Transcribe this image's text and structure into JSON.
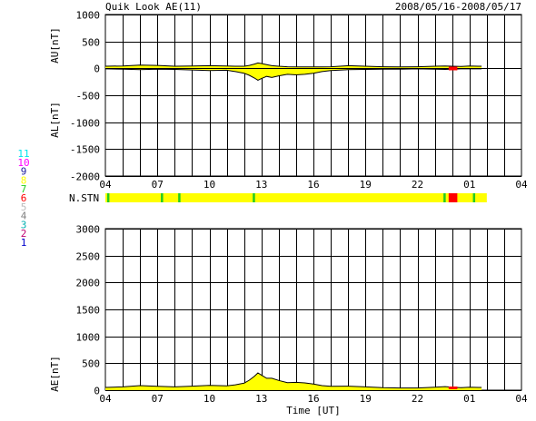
{
  "header": {
    "title": "Quik Look AE(11)",
    "date_range": "2008/05/16-2008/05/17"
  },
  "station_legend": {
    "label": "N.STN",
    "entries": [
      {
        "label": "11",
        "color": "#00e5ee"
      },
      {
        "label": "10",
        "color": "#ff00ff"
      },
      {
        "label": "9",
        "color": "#2020a0"
      },
      {
        "label": "8",
        "color": "#ffff00"
      },
      {
        "label": "7",
        "color": "#22cc22"
      },
      {
        "label": "6",
        "color": "#ff0000"
      },
      {
        "label": "5",
        "color": "#bbbbbb"
      },
      {
        "label": "4",
        "color": "#808080"
      },
      {
        "label": "3",
        "color": "#00b0b0"
      },
      {
        "label": "2",
        "color": "#c00070"
      },
      {
        "label": "1",
        "color": "#0000cc"
      }
    ]
  },
  "colors": {
    "fill": "#ffff00",
    "line": "#000000",
    "missing": "#ff0000",
    "grid": "#000000"
  },
  "chart_data": [
    {
      "type": "area",
      "name": "AU/AL",
      "ylabel_top": "AU[nT]",
      "ylabel_bottom": "AL[nT]",
      "ylim": [
        -2000,
        1000
      ],
      "yticks": [
        1000,
        500,
        0,
        -500,
        -1000,
        -1500,
        -2000
      ],
      "xlim_hours": [
        4,
        28
      ],
      "xticks": [
        "04",
        "07",
        "10",
        "13",
        "16",
        "19",
        "22",
        "01",
        "04"
      ],
      "grid": "on",
      "x_hours": [
        4.0,
        5.0,
        6.0,
        7.0,
        8.0,
        9.0,
        10.0,
        11.0,
        11.5,
        12.0,
        12.3,
        12.6,
        12.8,
        13.0,
        13.3,
        13.6,
        14.0,
        14.5,
        15.0,
        15.5,
        16.0,
        16.5,
        17.0,
        18.0,
        19.0,
        20.0,
        21.0,
        22.0,
        23.0,
        23.6,
        24.0,
        24.5,
        25.0,
        25.5,
        25.7
      ],
      "au": [
        40,
        45,
        60,
        55,
        40,
        45,
        50,
        45,
        40,
        40,
        55,
        80,
        100,
        90,
        70,
        50,
        40,
        30,
        25,
        25,
        25,
        25,
        30,
        50,
        40,
        30,
        25,
        30,
        40,
        45,
        40,
        35,
        45,
        40,
        40
      ],
      "al": [
        -10,
        -15,
        -25,
        -15,
        -20,
        -30,
        -40,
        -35,
        -60,
        -90,
        -130,
        -180,
        -220,
        -190,
        -150,
        -170,
        -140,
        -110,
        -120,
        -110,
        -90,
        -60,
        -40,
        -25,
        -20,
        -15,
        -15,
        -10,
        -15,
        -20,
        -15,
        -10,
        -10,
        -10,
        -10
      ]
    },
    {
      "type": "area",
      "name": "AE",
      "ylabel": "AE[nT]",
      "xlabel": "Time [UT]",
      "ylim": [
        0,
        3000
      ],
      "yticks": [
        3000,
        2500,
        2000,
        1500,
        1000,
        500,
        0
      ],
      "xlim_hours": [
        4,
        28
      ],
      "xticks": [
        "04",
        "07",
        "10",
        "13",
        "16",
        "19",
        "22",
        "01",
        "04"
      ],
      "grid": "on",
      "x_hours": [
        4.0,
        5.0,
        6.0,
        7.0,
        8.0,
        9.0,
        10.0,
        11.0,
        11.5,
        12.0,
        12.3,
        12.6,
        12.8,
        13.0,
        13.3,
        13.6,
        14.0,
        14.5,
        15.0,
        15.5,
        16.0,
        16.5,
        17.0,
        18.0,
        19.0,
        20.0,
        21.0,
        22.0,
        23.0,
        23.6,
        24.0,
        24.5,
        25.0,
        25.5,
        25.7
      ],
      "ae": [
        50,
        60,
        85,
        70,
        60,
        75,
        90,
        80,
        100,
        130,
        185,
        260,
        320,
        280,
        220,
        220,
        180,
        140,
        145,
        135,
        115,
        85,
        70,
        75,
        60,
        45,
        40,
        40,
        55,
        65,
        55,
        45,
        55,
        50,
        50
      ]
    },
    {
      "type": "station-count-bar",
      "name": "N.STN",
      "xlim_hours": [
        4,
        28
      ],
      "base_count": 8,
      "markers": [
        {
          "hour": 4.1,
          "count": 7
        },
        {
          "hour": 7.2,
          "count": 7
        },
        {
          "hour": 8.2,
          "count": 7
        },
        {
          "hour": 12.5,
          "count": 7
        },
        {
          "hour": 23.5,
          "count": 7
        },
        {
          "hour": 25.2,
          "count": 7
        }
      ],
      "missing_ranges": [
        [
          23.8,
          24.3
        ]
      ],
      "data_end_hour": 26.0
    }
  ]
}
